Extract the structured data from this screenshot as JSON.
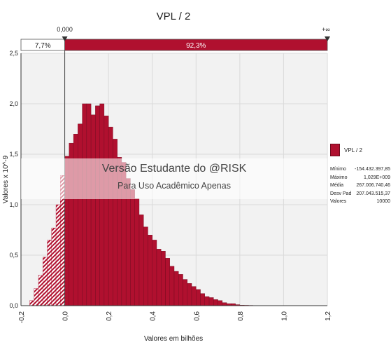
{
  "chart_data": {
    "type": "histogram",
    "title": "VPL / 2",
    "xlabel": "Valores em bilhões",
    "ylabel": "Valores x 10^-9",
    "xlim": [
      -0.2,
      1.2
    ],
    "ylim": [
      0,
      2.5
    ],
    "x_ticks": [
      "-0,2",
      "0,0",
      "0,2",
      "0,4",
      "0,6",
      "0,8",
      "1,0",
      "1,2"
    ],
    "x_tick_values": [
      -0.2,
      0.0,
      0.2,
      0.4,
      0.6,
      0.8,
      1.0,
      1.2
    ],
    "y_ticks": [
      "0,0",
      "0,5",
      "1,0",
      "1,5",
      "2,0",
      "2,5"
    ],
    "y_tick_values": [
      0,
      0.5,
      1.0,
      1.5,
      2.0,
      2.5
    ],
    "bin_width": 0.02,
    "bins_start": [
      -0.16,
      -0.14,
      -0.12,
      -0.1,
      -0.08,
      -0.06,
      -0.04,
      -0.02,
      0.0,
      0.02,
      0.04,
      0.06,
      0.08,
      0.1,
      0.12,
      0.14,
      0.16,
      0.18,
      0.2,
      0.22,
      0.24,
      0.26,
      0.28,
      0.3,
      0.32,
      0.34,
      0.36,
      0.38,
      0.4,
      0.42,
      0.44,
      0.46,
      0.48,
      0.5,
      0.52,
      0.54,
      0.56,
      0.58,
      0.6,
      0.62,
      0.64,
      0.66,
      0.68,
      0.7,
      0.72,
      0.74,
      0.76,
      0.78,
      0.8,
      0.82,
      0.84,
      0.86,
      0.88,
      0.9,
      0.92,
      0.94,
      0.96,
      0.98,
      1.0,
      1.02
    ],
    "values": [
      0.05,
      0.17,
      0.3,
      0.48,
      0.65,
      0.77,
      1.0,
      1.29,
      1.48,
      1.61,
      1.7,
      1.8,
      2.0,
      2.0,
      1.89,
      1.98,
      2.0,
      1.88,
      1.77,
      1.65,
      1.47,
      1.42,
      1.26,
      1.15,
      1.06,
      0.9,
      0.78,
      0.7,
      0.65,
      0.56,
      0.54,
      0.47,
      0.39,
      0.34,
      0.31,
      0.26,
      0.22,
      0.19,
      0.16,
      0.12,
      0.09,
      0.08,
      0.06,
      0.05,
      0.03,
      0.02,
      0.02,
      0.01,
      0.005,
      0.004,
      0.003,
      0.002,
      0.0015,
      0.001,
      0.001,
      0.0008,
      0.0005,
      0.0003,
      0.0002,
      0.0001
    ],
    "delimiter": {
      "left_value": "0,000",
      "right_value": "+∞",
      "left_pct": "7,7%",
      "right_pct": "92,3%",
      "x": 0.0
    },
    "legend": {
      "label": "VPL / 2",
      "placement": "right"
    },
    "grid": true
  },
  "stats": {
    "rows": [
      {
        "label": "Mínimo",
        "value": "-154.432.397,85"
      },
      {
        "label": "Máximo",
        "value": "1,029E+009"
      },
      {
        "label": "Média",
        "value": "267.006.740,46"
      },
      {
        "label": "Desv Pad",
        "value": "207.043.515,37"
      },
      {
        "label": "Valores",
        "value": "10000"
      }
    ]
  },
  "watermark": {
    "line1": "Versão Estudante do @RISK",
    "line2": "Para Uso Acadêmico Apenas"
  },
  "colors": {
    "bar": "#b0102f",
    "bar_dark": "#6e0a1d",
    "plot_bg": "#f2f2f2",
    "grid": "#dadada"
  }
}
